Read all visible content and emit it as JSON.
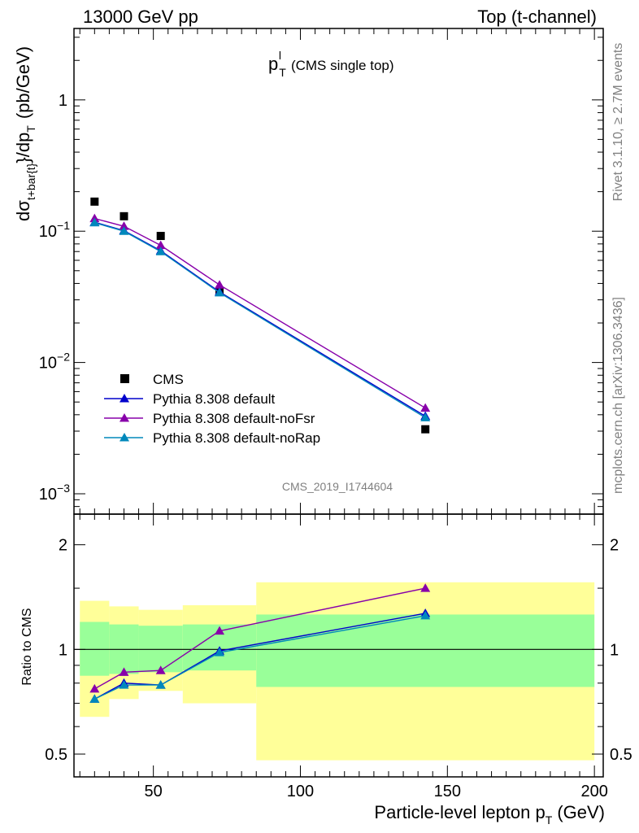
{
  "header": {
    "left": "13000 GeV pp",
    "right": "Top (t-channel)"
  },
  "side": {
    "rivet": "Rivet 3.1.10, ≥ 2.7M events",
    "mcplots": "mcplots.cern.ch [arXiv:1306.3436]"
  },
  "chart_data": [
    {
      "type": "line",
      "title": "p_T^l (CMS single top)",
      "title_main": "p",
      "title_sub": "T",
      "title_sup": "l",
      "title_rest": "(CMS single top)",
      "ylabel": "dσ_{t+bar{t}}/dp_T (pb/GeV)",
      "yscale": "log",
      "ylim": [
        0.0007,
        3.5
      ],
      "xlim": [
        23,
        203
      ],
      "y_ticks": [
        {
          "v": 1,
          "base": "1",
          "exp": ""
        },
        {
          "v": 0.1,
          "base": "10",
          "exp": "−1"
        },
        {
          "v": 0.01,
          "base": "10",
          "exp": "−2"
        },
        {
          "v": 0.001,
          "base": "10",
          "exp": "−3"
        }
      ],
      "watermark": "CMS_2019_I1744604",
      "x": [
        30,
        40,
        52.5,
        72.5,
        142.5
      ],
      "series": [
        {
          "name": "CMS",
          "style": "marker",
          "color": "#000000",
          "marker": "square",
          "values": [
            0.168,
            0.13,
            0.092,
            0.035,
            0.0031
          ]
        },
        {
          "name": "Pythia 8.308 default",
          "color": "#0000cc",
          "marker": "triangle",
          "values": [
            0.117,
            0.101,
            0.071,
            0.0345,
            0.0039
          ]
        },
        {
          "name": "Pythia 8.308 default-noFsr",
          "color": "#8800aa",
          "marker": "triangle",
          "values": [
            0.125,
            0.109,
            0.078,
            0.039,
            0.0045
          ]
        },
        {
          "name": "Pythia 8.308 default-noRap",
          "color": "#0088bb",
          "marker": "triangle",
          "values": [
            0.116,
            0.1,
            0.07,
            0.034,
            0.0038
          ]
        }
      ],
      "legend_placement": "lower-left"
    },
    {
      "type": "line",
      "ylabel": "Ratio to CMS",
      "xlabel": "Particle-level lepton p_T (GeV)",
      "xlabel_main": "Particle-level lepton p",
      "xlabel_sub": "T",
      "xlabel_rest": "(GeV)",
      "yscale": "log",
      "ylim": [
        0.43,
        2.45
      ],
      "xlim": [
        23,
        203
      ],
      "x_ticks": [
        50,
        100,
        150,
        200
      ],
      "y_ticks": [
        {
          "v": 0.5,
          "label": "0.5"
        },
        {
          "v": 1,
          "label": "1"
        },
        {
          "v": 2,
          "label": "2"
        }
      ],
      "reference_line": 1,
      "bands": [
        {
          "x0": 25,
          "x1": 35,
          "inner": [
            0.84,
            1.2
          ],
          "outer": [
            0.64,
            1.38
          ]
        },
        {
          "x0": 35,
          "x1": 45,
          "inner": [
            0.85,
            1.18
          ],
          "outer": [
            0.72,
            1.33
          ]
        },
        {
          "x0": 45,
          "x1": 60,
          "inner": [
            0.86,
            1.17
          ],
          "outer": [
            0.76,
            1.3
          ]
        },
        {
          "x0": 60,
          "x1": 85,
          "inner": [
            0.87,
            1.18
          ],
          "outer": [
            0.7,
            1.34
          ]
        },
        {
          "x0": 85,
          "x1": 200,
          "inner": [
            0.78,
            1.26
          ],
          "outer": [
            0.48,
            1.56
          ]
        }
      ],
      "band_colors": {
        "inner": "#99ff99",
        "outer": "#ffff99"
      },
      "x": [
        30,
        40,
        52.5,
        72.5,
        142.5
      ],
      "series": [
        {
          "name": "Pythia 8.308 default",
          "color": "#0000cc",
          "values": [
            0.72,
            0.8,
            0.79,
            0.99,
            1.27
          ]
        },
        {
          "name": "Pythia 8.308 default-noFsr",
          "color": "#8800aa",
          "values": [
            0.77,
            0.86,
            0.87,
            1.13,
            1.5
          ]
        },
        {
          "name": "Pythia 8.308 default-noRap",
          "color": "#0088bb",
          "values": [
            0.72,
            0.79,
            0.79,
            0.98,
            1.25
          ]
        }
      ]
    }
  ]
}
